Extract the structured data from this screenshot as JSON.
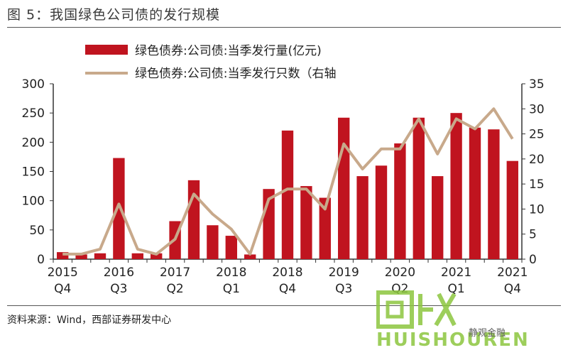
{
  "figure_title": "图 5：我国绿色公司债的发行规模",
  "source": "资料来源：Wind，西部证券研发中心",
  "watermark": {
    "logo_text": "HUISHOUREN",
    "account": "静观金融"
  },
  "colors": {
    "bar": "#c0141f",
    "line": "#c8a98b",
    "axis": "#333333"
  },
  "chart_data": {
    "type": "bar",
    "title": "",
    "legend": [
      {
        "label": "绿色债券:公司债:当季发行量(亿元)",
        "kind": "bar"
      },
      {
        "label": "绿色债券:公司债:当季发行只数（右轴",
        "kind": "line"
      }
    ],
    "legend_position": "top",
    "categories": [
      "2015Q4",
      "2016Q1",
      "2016Q2",
      "2016Q3",
      "2016Q4",
      "2017Q1",
      "2017Q2",
      "2017Q3",
      "2017Q4",
      "2018Q1",
      "2018Q2",
      "2018Q3",
      "2018Q4",
      "2019Q1",
      "2019Q2",
      "2019Q3",
      "2019Q4",
      "2020Q1",
      "2020Q2",
      "2020Q3",
      "2020Q4",
      "2021Q1",
      "2021Q2",
      "2021Q3",
      "2021Q4"
    ],
    "x_tick_labels": [
      {
        "year": "2015",
        "quarter": "Q4",
        "index": 0
      },
      {
        "year": "2016",
        "quarter": "Q3",
        "index": 3
      },
      {
        "year": "2017",
        "quarter": "Q2",
        "index": 6
      },
      {
        "year": "2018",
        "quarter": "Q1",
        "index": 9
      },
      {
        "year": "2018",
        "quarter": "Q4",
        "index": 12
      },
      {
        "year": "2019",
        "quarter": "Q3",
        "index": 15
      },
      {
        "year": "2020",
        "quarter": "Q2",
        "index": 18
      },
      {
        "year": "2021",
        "quarter": "Q1",
        "index": 21
      },
      {
        "year": "2021",
        "quarter": "Q4",
        "index": 24
      }
    ],
    "series": [
      {
        "name": "绿色债券:公司债:当季发行量(亿元)",
        "axis": "left",
        "type": "bar",
        "values": [
          12,
          8,
          10,
          173,
          10,
          10,
          65,
          135,
          58,
          40,
          8,
          120,
          220,
          125,
          105,
          242,
          142,
          160,
          198,
          242,
          142,
          250,
          225,
          222,
          168
        ]
      },
      {
        "name": "绿色债券:公司债:当季发行只数（右轴",
        "axis": "right",
        "type": "line",
        "values": [
          1,
          1,
          2,
          11,
          2,
          1,
          4,
          13,
          9,
          6,
          1,
          12,
          14,
          14,
          10,
          23,
          18,
          22,
          22,
          28,
          21,
          28,
          26,
          30,
          24
        ]
      }
    ],
    "y_left": {
      "min": 0,
      "max": 300,
      "ticks": [
        0,
        50,
        100,
        150,
        200,
        250,
        300
      ]
    },
    "y_right": {
      "min": 0,
      "max": 35,
      "ticks": [
        0,
        5,
        10,
        15,
        20,
        25,
        30,
        35
      ]
    },
    "grid": false
  }
}
